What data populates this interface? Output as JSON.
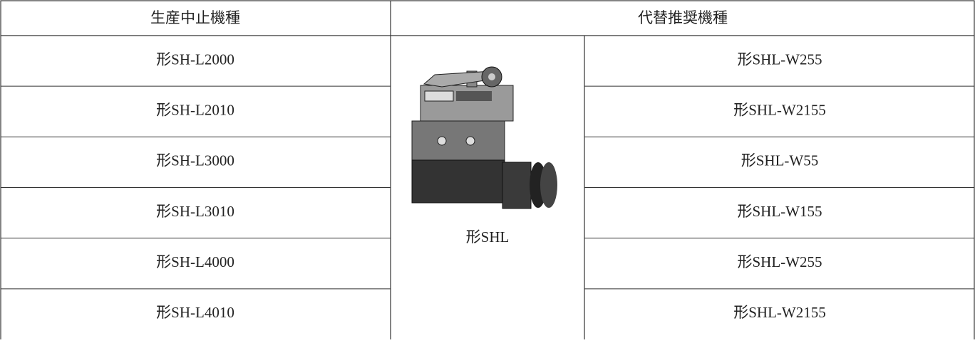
{
  "table": {
    "header": [
      "生産中止機種",
      "代替推奨機種"
    ],
    "discontinued": [
      "形SH-L2000",
      "形SH-L2010",
      "形SH-L3000",
      "形SH-L3010",
      "形SH-L4000",
      "形SH-L4010"
    ],
    "replacement_series": "形SHL",
    "replacements": [
      "形SHL-W255",
      "形SHL-W2155",
      "形SHL-W55",
      "形SHL-W155",
      "形SHL-W255",
      "形SHL-W2155"
    ]
  }
}
